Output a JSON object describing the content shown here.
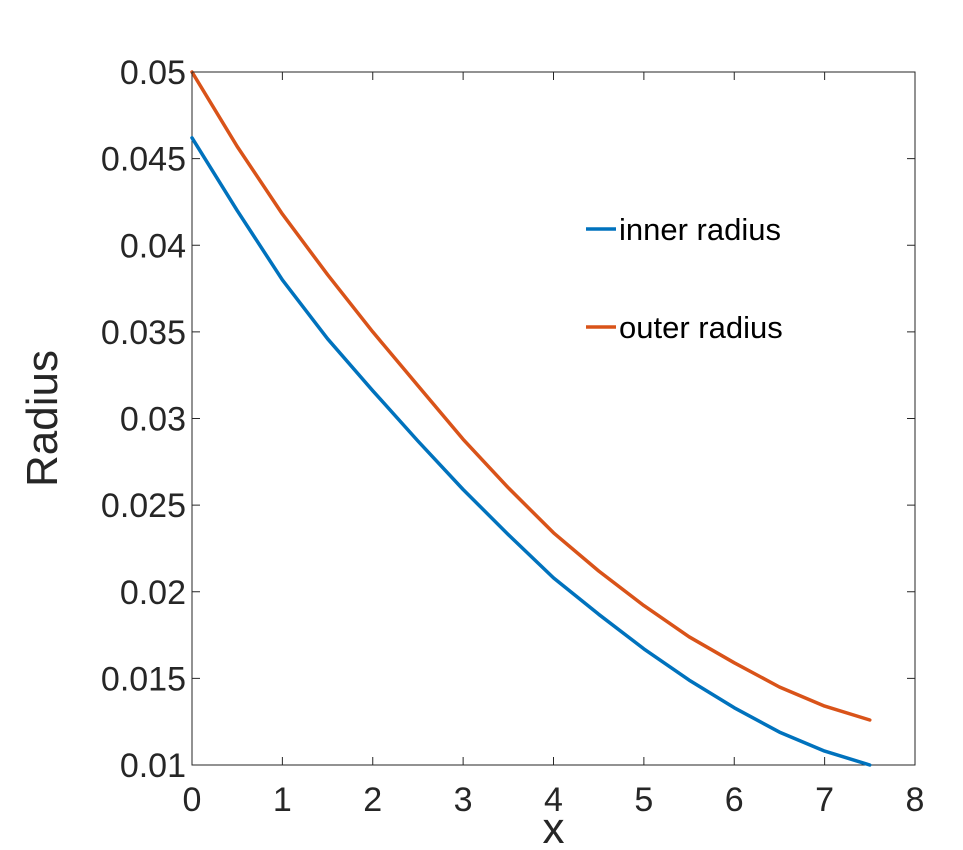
{
  "chart_data": {
    "type": "line",
    "title": "",
    "xlabel": "x",
    "ylabel": "Radius",
    "xlim": [
      0,
      8
    ],
    "ylim": [
      0.01,
      0.05
    ],
    "xticks": [
      "0",
      "1",
      "2",
      "3",
      "4",
      "5",
      "6",
      "7",
      "8"
    ],
    "yticks": [
      "0.01",
      "0.015",
      "0.02",
      "0.025",
      "0.03",
      "0.035",
      "0.04",
      "0.045",
      "0.05"
    ],
    "grid": false,
    "legend_position": "top-right",
    "series": [
      {
        "name": "inner radius",
        "color": "#0072BD",
        "x": [
          0,
          0.5,
          1,
          1.5,
          2,
          2.5,
          3,
          3.5,
          4,
          4.5,
          5,
          5.5,
          6,
          6.5,
          7,
          7.5
        ],
        "y": [
          0.0462,
          0.042,
          0.038,
          0.0346,
          0.0316,
          0.0287,
          0.0259,
          0.0233,
          0.0208,
          0.0187,
          0.0167,
          0.0149,
          0.0133,
          0.0119,
          0.0108,
          0.01
        ]
      },
      {
        "name": "outer radius",
        "color": "#D95319",
        "x": [
          0,
          0.5,
          1,
          1.5,
          2,
          2.5,
          3,
          3.5,
          4,
          4.5,
          5,
          5.5,
          6,
          6.5,
          7,
          7.5
        ],
        "y": [
          0.05,
          0.0457,
          0.0418,
          0.0383,
          0.035,
          0.0319,
          0.0288,
          0.026,
          0.0234,
          0.0212,
          0.0192,
          0.0174,
          0.0159,
          0.0145,
          0.0134,
          0.0126
        ]
      }
    ]
  }
}
